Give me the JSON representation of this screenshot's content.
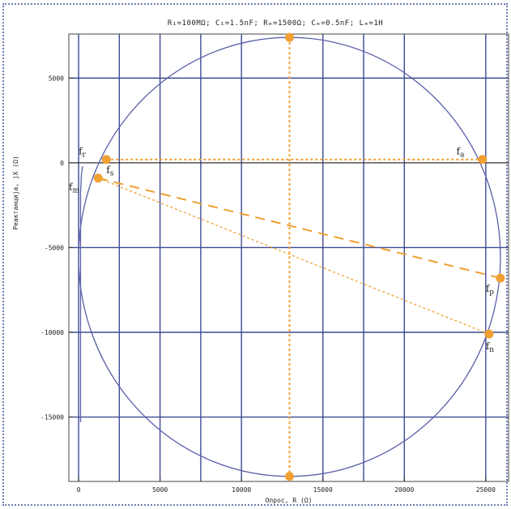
{
  "chart_data": {
    "type": "line",
    "title": "R₁=100MΩ; C₁=1.5nF; Rₘ=1500Ω; Cₘ=0.5nF; Lₘ=1H",
    "xlabel": "Опрос, R (Ω)",
    "ylabel": "Реактанција, jX (Ω)",
    "xlim": [
      -600,
      26400
    ],
    "ylim": [
      -18800,
      7600
    ],
    "xticks": [
      0,
      5000,
      10000,
      15000,
      20000,
      25000
    ],
    "xtick_labels": [
      "0",
      "5000",
      "10000",
      "15000",
      "20000",
      "25000"
    ],
    "yticks": [
      5000,
      0,
      -5000,
      -10000,
      -15000
    ],
    "ytick_labels": [
      "5000",
      "0",
      "-5000",
      "-10000",
      "-15000"
    ],
    "grid": true,
    "circle": {
      "center": [
        12950,
        -5550
      ],
      "radius": 12950
    },
    "tail": {
      "x": [
        120,
        120,
        170,
        250
      ],
      "y": [
        -15300,
        -1800,
        -700,
        -200
      ]
    },
    "points": [
      {
        "name": "top",
        "x": 12950,
        "y": 7400
      },
      {
        "name": "bottom",
        "x": 12950,
        "y": -18500
      },
      {
        "name": "fr",
        "x": 1700,
        "y": 200
      },
      {
        "name": "fa",
        "x": 24800,
        "y": 200
      },
      {
        "name": "fs",
        "x": 1200,
        "y": -900
      },
      {
        "name": "fp",
        "x": 25900,
        "y": -6800
      },
      {
        "name": "fn",
        "x": 25200,
        "y": -10100
      }
    ],
    "labels": [
      {
        "text": "f",
        "sub": "r",
        "x": 0,
        "y": 500
      },
      {
        "text": "f",
        "sub": "a",
        "x": 23200,
        "y": 500
      },
      {
        "text": "f",
        "sub": "s",
        "x": 1700,
        "y": -600
      },
      {
        "text": "f",
        "sub": "m",
        "x": -600,
        "y": -1600
      },
      {
        "text": "f",
        "sub": "p",
        "x": 25000,
        "y": -7600
      },
      {
        "text": "f",
        "sub": "n",
        "x": 25000,
        "y": -11000
      }
    ],
    "colors": {
      "curve": "#5a5faa",
      "grid": "#3d4a92",
      "accent": "#f0a030"
    }
  }
}
